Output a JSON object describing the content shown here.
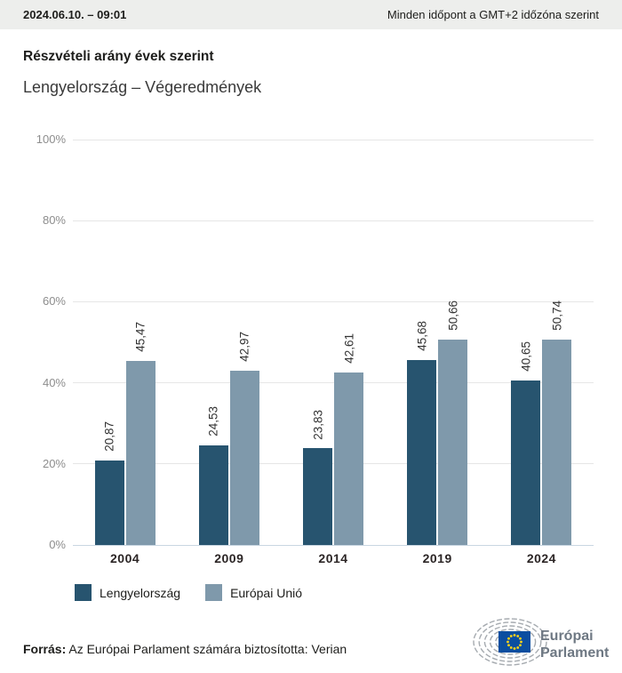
{
  "header": {
    "datetime": "2024.06.10. – 09:01",
    "timezone_note": "Minden időpont a GMT+2 időzóna szerint"
  },
  "title": "Részvételi arány évek szerint",
  "subtitle": "Lengyelország – Végeredmények",
  "chart_data": {
    "type": "bar",
    "categories": [
      "2004",
      "2009",
      "2014",
      "2019",
      "2024"
    ],
    "series": [
      {
        "name": "Lengyelország",
        "color": "#27546f",
        "values": [
          20.87,
          24.53,
          23.83,
          45.68,
          40.65
        ],
        "labels": [
          "20,87",
          "24,53",
          "23,83",
          "45,68",
          "40,65"
        ]
      },
      {
        "name": "Európai Unió",
        "color": "#7f99ab",
        "values": [
          45.47,
          42.97,
          42.61,
          50.66,
          50.74
        ],
        "labels": [
          "45,47",
          "42,97",
          "42,61",
          "50,66",
          "50,74"
        ]
      }
    ],
    "title": "Részvételi arány évek szerint",
    "xlabel": "",
    "ylabel": "",
    "ylim": [
      0,
      100
    ],
    "yticks": [
      0,
      20,
      40,
      60,
      80,
      100
    ],
    "ytick_labels": [
      "0%",
      "20%",
      "40%",
      "60%",
      "80%",
      "100%"
    ],
    "grid": true,
    "gridline_color": "#e6e6e6",
    "baseline_color": "#c9d6e2",
    "legend_position": "bottom",
    "value_label_rotation": -90
  },
  "footer": {
    "source_label": "Forrás:",
    "source_text": " Az Európai Parlament számára biztosította: Verian"
  },
  "logo": {
    "line1": "Európai",
    "line2": "Parlament",
    "text_color": "#6e7883",
    "arc_color": "#a6abb0",
    "flag_blue": "#0b4ea0",
    "star_yellow": "#ffd617"
  }
}
